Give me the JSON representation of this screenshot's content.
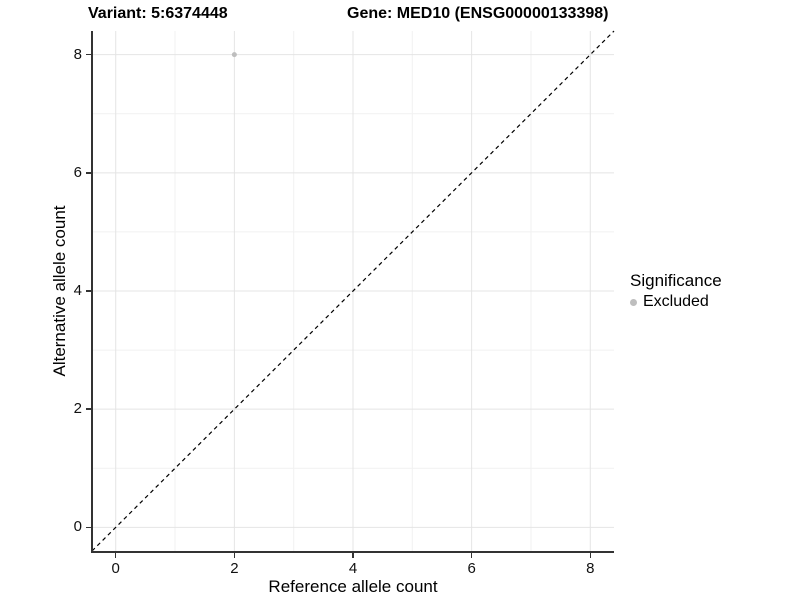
{
  "header": {
    "variant_label": "Variant: 5:6374448",
    "gene_label": "Gene: MED10 (ENSG00000133398)"
  },
  "axes": {
    "x_title": "Reference allele count",
    "y_title": "Alternative allele count",
    "x_tick_labels": [
      "0",
      "2",
      "4",
      "6",
      "8"
    ],
    "y_tick_labels": [
      "0",
      "2",
      "4",
      "6",
      "8"
    ]
  },
  "legend": {
    "title": "Significance",
    "items": [
      {
        "label": "Excluded",
        "color": "#bebebe"
      }
    ]
  },
  "colors": {
    "axis_line": "#333333",
    "major_grid": "#e4e4e4",
    "minor_grid": "#f1f1f1",
    "reference_line": "#000000",
    "point": "#bebebe",
    "text": "#000000"
  },
  "chart_data": {
    "type": "scatter",
    "title": "Variant: 5:6374448   Gene: MED10 (ENSG00000133398)",
    "xlabel": "Reference allele count",
    "ylabel": "Alternative allele count",
    "xlim": [
      -0.4,
      8.4
    ],
    "ylim": [
      -0.4,
      8.4
    ],
    "x_major_ticks": [
      0,
      2,
      4,
      6,
      8
    ],
    "y_major_ticks": [
      0,
      2,
      4,
      6,
      8
    ],
    "x_minor_gridlines": [
      1,
      3,
      5,
      7
    ],
    "y_minor_gridlines": [
      1,
      3,
      5,
      7
    ],
    "grid": true,
    "legend_position": "right",
    "legend_title": "Significance",
    "series": [
      {
        "name": "Excluded",
        "color": "#bebebe",
        "marker": "circle",
        "points": [
          {
            "x": 2,
            "y": 8
          }
        ]
      }
    ],
    "reference_line": {
      "type": "identity",
      "slope": 1,
      "intercept": 0,
      "style": "dashed",
      "color": "#000000"
    }
  }
}
